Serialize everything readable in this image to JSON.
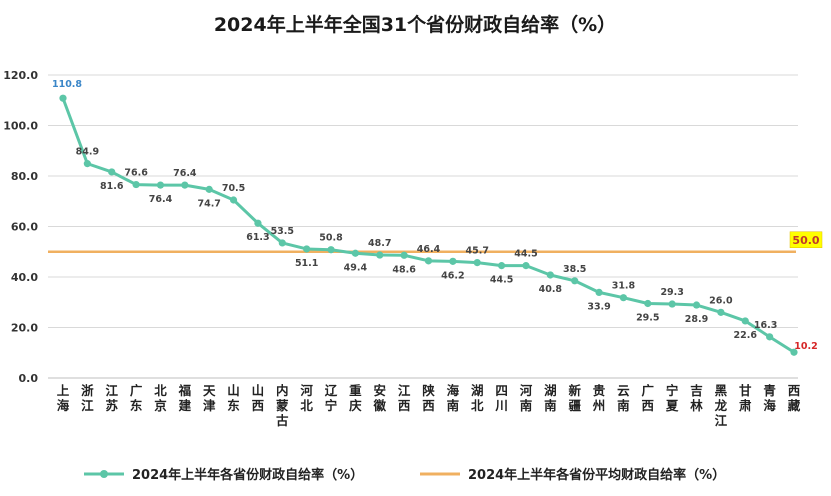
{
  "chart_data": {
    "type": "line",
    "title": "2024年上半年全国31个省份财政自给率（%）",
    "ylim": [
      0,
      120
    ],
    "yticks": [
      "0.0",
      "20.0",
      "40.0",
      "60.0",
      "80.0",
      "100.0",
      "120.0"
    ],
    "grid": true,
    "legend_position": "bottom",
    "categories": [
      "上海",
      "浙江",
      "江苏",
      "广东",
      "北京",
      "福建",
      "天津",
      "山东",
      "山西",
      "内蒙古",
      "河北",
      "辽宁",
      "重庆",
      "安徽",
      "江西",
      "陕西",
      "海南",
      "湖北",
      "四川",
      "河南",
      "湖南",
      "新疆",
      "贵州",
      "云南",
      "广西",
      "宁夏",
      "吉林",
      "黑龙江",
      "甘肃",
      "青海",
      "西藏"
    ],
    "series": [
      {
        "name": "2024年上半年各省份财政自给率（%）",
        "color": "#5cc6a7",
        "values": [
          110.8,
          84.9,
          81.6,
          76.6,
          76.4,
          76.4,
          74.7,
          70.5,
          61.3,
          53.5,
          51.1,
          50.8,
          49.4,
          48.7,
          48.6,
          46.4,
          46.2,
          45.7,
          44.5,
          44.5,
          40.8,
          38.5,
          33.9,
          31.8,
          29.5,
          29.3,
          28.9,
          26.0,
          22.6,
          16.3,
          10.2
        ],
        "labels": [
          "110.8",
          "84.9",
          "81.6",
          "76.6",
          "76.4",
          "76.4",
          "74.7",
          "70.5",
          "61.3",
          "53.5",
          "51.1",
          "50.8",
          "49.4",
          "48.7",
          "48.6",
          "46.4",
          "46.2",
          "45.7",
          "44.5",
          "44.5",
          "40.8",
          "38.5",
          "33.9",
          "31.8",
          "29.5",
          "29.3",
          "28.9",
          "26.0",
          "22.6",
          "16.3",
          "10.2"
        ]
      },
      {
        "name": "2024年上半年各省份平均财政自给率（%）",
        "color": "#f0b060",
        "value": 50.0,
        "label": "50.0"
      }
    ]
  }
}
